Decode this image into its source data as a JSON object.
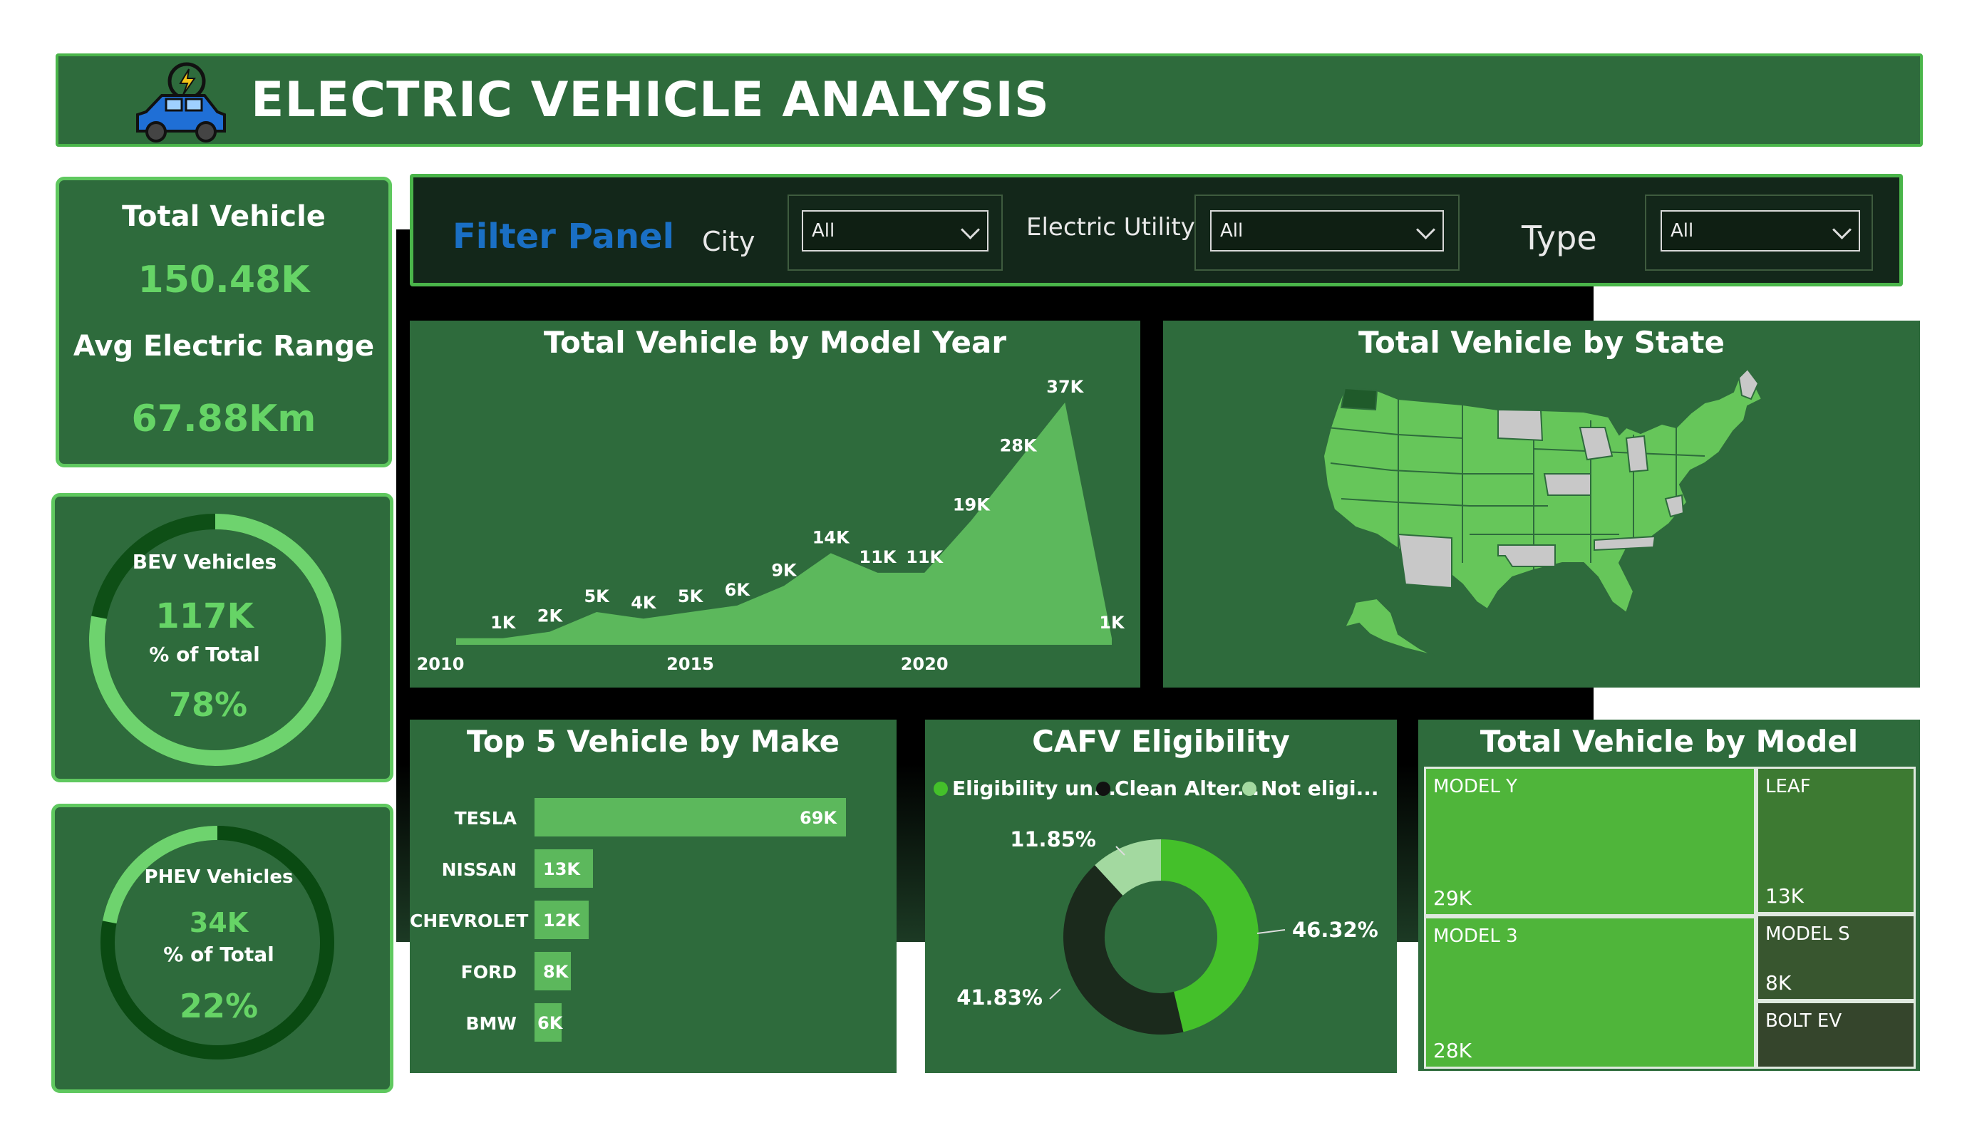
{
  "header": {
    "title": "ELECTRIC VEHICLE ANALYSIS"
  },
  "kpis": {
    "total_vehicle_label": "Total Vehicle",
    "total_vehicle_value": "150.48K",
    "avg_range_label": "Avg Electric Range",
    "avg_range_value": "67.88Km"
  },
  "bev": {
    "title": "BEV Vehicles",
    "value": "117K",
    "pct_label": "% of Total",
    "pct": "78%",
    "fraction": 0.78
  },
  "phev": {
    "title": "PHEV Vehicles",
    "value": "34K",
    "pct_label": "% of Total",
    "pct": "22%",
    "fraction": 0.22
  },
  "filters": {
    "title": "Filter Panel",
    "city_label": "City",
    "city_value": "All",
    "utility_label": "Electric Utility",
    "utility_value": "All",
    "type_label": "Type",
    "type_value": "All"
  },
  "colors": {
    "accent": "#5fc85f",
    "panel": "#2e6b3c",
    "area": "#5cb85c",
    "donut_green": "#44c02a",
    "donut_dark": "#1b2a1c",
    "donut_light": "#a3d9a0"
  },
  "chart_data": [
    {
      "type": "area",
      "title": "Total Vehicle by Model Year",
      "x": [
        2010,
        2011,
        2012,
        2013,
        2014,
        2015,
        2016,
        2017,
        2018,
        2019,
        2020,
        2021,
        2022,
        2023,
        2024
      ],
      "values": [
        1,
        1,
        2,
        5,
        4,
        5,
        6,
        9,
        14,
        11,
        11,
        19,
        28,
        37,
        1
      ],
      "labels": [
        "",
        "1K",
        "2K",
        "5K",
        "4K",
        "5K",
        "6K",
        "9K",
        "14K",
        "11K",
        "11K",
        "19K",
        "28K",
        "37K",
        "1K"
      ],
      "xticks": [
        "2010",
        "2015",
        "2020"
      ],
      "units": "K"
    },
    {
      "type": "bar",
      "title": "Top 5 Vehicle by Make",
      "categories": [
        "TESLA",
        "NISSAN",
        "CHEVROLET",
        "FORD",
        "BMW"
      ],
      "values": [
        69,
        13,
        12,
        8,
        6
      ],
      "labels": [
        "69K",
        "13K",
        "12K",
        "8K",
        "6K"
      ]
    },
    {
      "type": "pie",
      "title": "CAFV Eligibility",
      "legend": [
        "Eligibility un...",
        "Clean Alter...",
        "Not eligi..."
      ],
      "values": [
        46.32,
        41.83,
        11.85
      ],
      "labels": [
        "46.32%",
        "41.83%",
        "11.85%"
      ]
    },
    {
      "type": "treemap",
      "title": "Total Vehicle by Model",
      "categories": [
        "MODEL Y",
        "MODEL 3",
        "LEAF",
        "MODEL S",
        "BOLT EV"
      ],
      "labels": [
        "29K",
        "28K",
        "13K",
        "8K",
        ""
      ]
    },
    {
      "type": "map",
      "title": "Total Vehicle by State"
    }
  ]
}
